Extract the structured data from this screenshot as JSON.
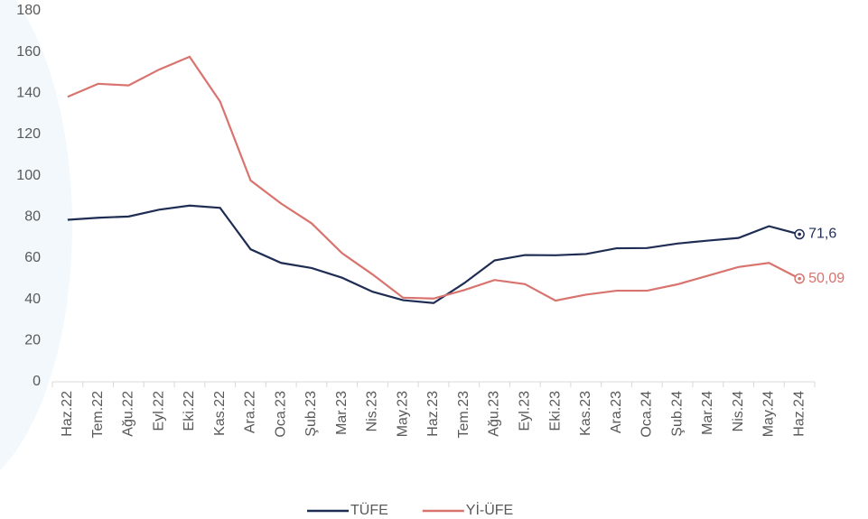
{
  "chart_data": {
    "type": "line",
    "categories": [
      "Haz.22",
      "Tem.22",
      "Ağu.22",
      "Eyl.22",
      "Eki.22",
      "Kas.22",
      "Ara.22",
      "Oca.23",
      "Şub.23",
      "Mar.23",
      "Nis.23",
      "May.23",
      "Haz.23",
      "Tem.23",
      "Ağu.23",
      "Eyl.23",
      "Eki.23",
      "Kas.23",
      "Ara.23",
      "Oca.24",
      "Şub.24",
      "Mar.24",
      "Nis.24",
      "May.24",
      "Haz.24"
    ],
    "series": [
      {
        "name": "TÜFE",
        "color": "#1f2d54",
        "values": [
          78.6,
          79.6,
          80.2,
          83.5,
          85.5,
          84.4,
          64.3,
          57.7,
          55.2,
          50.5,
          43.7,
          39.6,
          38.2,
          47.8,
          58.9,
          61.5,
          61.4,
          62.0,
          64.8,
          64.9,
          67.1,
          68.5,
          69.8,
          75.5,
          71.6
        ],
        "value_labels": [
          null,
          null,
          null,
          null,
          null,
          null,
          null,
          null,
          null,
          null,
          null,
          null,
          null,
          null,
          null,
          null,
          null,
          null,
          null,
          null,
          null,
          null,
          null,
          null,
          "71,6"
        ]
      },
      {
        "name": "Yİ-ÜFE",
        "color": "#d9736e",
        "values": [
          138.3,
          144.6,
          143.8,
          151.5,
          157.7,
          136.0,
          97.7,
          86.5,
          76.9,
          62.4,
          52.1,
          40.8,
          40.4,
          44.5,
          49.4,
          47.4,
          39.4,
          42.3,
          44.2,
          44.2,
          47.3,
          51.5,
          55.7,
          57.7,
          50.09
        ],
        "value_labels": [
          null,
          null,
          null,
          null,
          null,
          null,
          null,
          null,
          null,
          null,
          null,
          null,
          null,
          null,
          null,
          null,
          null,
          null,
          null,
          null,
          null,
          null,
          null,
          null,
          "50,09"
        ]
      }
    ],
    "ylim": [
      0,
      180
    ],
    "yticks": [
      0,
      20,
      40,
      60,
      80,
      100,
      120,
      140,
      160,
      180
    ],
    "legend": "bottom"
  }
}
